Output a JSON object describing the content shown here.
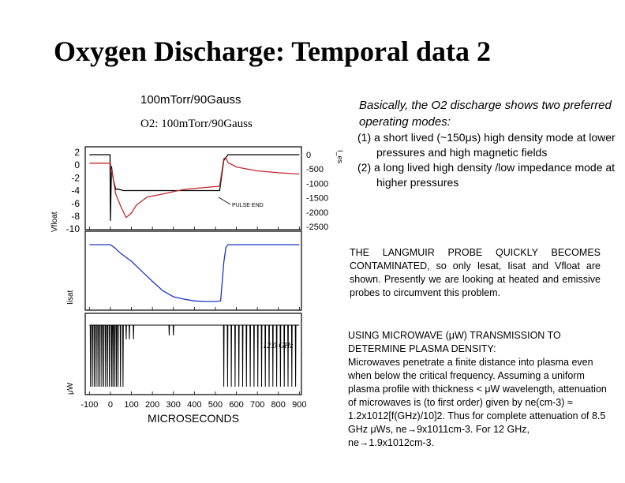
{
  "slide": {
    "title": "Oxygen Discharge: Temporal data 2",
    "subtitle": "100mTorr/90Gauss",
    "summary": "Basically, the O2 discharge shows two preferred operating modes:",
    "modes": [
      "(1) a short lived (~150μs) high density mode at lower pressures and high magnetic fields",
      "(2) a long lived high density /low impedance mode at higher pressures"
    ],
    "probe_note": "THE LANGMUIR PROBE QUICKLY BECOMES CONTAMINATED, so only Iesat, Iisat and Vfloat are shown. Presently we are looking at heated and emissive probes to circumvent this problem.",
    "uw_heading": "USING MICROWAVE (μW) TRANSMISSION TO DETERMINE PLASMA DENSITY:",
    "uw_body": "Microwaves penetrate a finite distance into plasma even when below the critical frequency. Assuming a uniform plasma profile with thickness < μW wavelength, attenuation of microwaves is (to first order) given by ne(cm-3) ≈ 1.2x1012[f(GHz)/10]2. Thus for complete attenuation of 8.5 GHz μWs, ne→9x1011cm-3. For 12 GHz, ne→1.9x1012cm-3."
  },
  "chart_data": {
    "type": "line",
    "title": "O2: 100mTorr/90Gauss",
    "xlabel": "MICROSECONDS",
    "x_ticks": [
      "-100",
      "0",
      "100",
      "200",
      "300",
      "400",
      "500",
      "600",
      "700",
      "800",
      "900"
    ],
    "xlim": [
      -120,
      910
    ],
    "annotations": [
      "PULSE END",
      "12.0 GHz"
    ],
    "panels": [
      {
        "ylabel": "Vfloat",
        "left_ticks": [
          "2",
          "0",
          "-2",
          "-4",
          "-6",
          "-8",
          "-10"
        ],
        "right_ticks": [
          "0",
          "-500",
          "-1000",
          "-1500",
          "-2000",
          "-2500"
        ],
        "series": [
          {
            "color": "#000000",
            "x": [
              -100,
              -2,
              0,
              5,
              8,
              15,
              25,
              40,
              60,
              90,
              130,
              200,
              300,
              400,
              500,
              520,
              540,
              560,
              600,
              700,
              800,
              900
            ],
            "y": [
              0,
              0,
              -2300,
              -400,
              -600,
              -900,
              -1200,
              -1200,
              -1250,
              -1250,
              -1250,
              -1250,
              -1250,
              -1250,
              -1250,
              -1250,
              -200,
              0,
              0,
              0,
              0,
              0
            ]
          },
          {
            "color": "#c0272d",
            "x": [
              -100,
              0,
              2,
              10,
              25,
              50,
              75,
              100,
              125,
              175,
              250,
              350,
              450,
              520,
              540,
              550,
              560,
              600,
              650,
              700,
              800,
              900
            ],
            "y": [
              0.3,
              0.3,
              -0.5,
              -1.5,
              -4.5,
              -6.5,
              -8.2,
              -7.5,
              -6.2,
              -5.0,
              -4.5,
              -3.8,
              -3.5,
              -3.3,
              1.0,
              1.2,
              0.4,
              -0.3,
              -0.6,
              -0.9,
              -1.2,
              -1.4
            ]
          }
        ]
      },
      {
        "ylabel": "Iisat",
        "series": [
          {
            "color": "#1d35c8",
            "x": [
              -100,
              0,
              20,
              50,
              100,
              150,
              200,
              250,
              300,
              350,
              400,
              450,
              500,
              525,
              540,
              550,
              560,
              600,
              700,
              800,
              900
            ],
            "y": [
              1.0,
              1.0,
              0.95,
              0.85,
              0.72,
              0.55,
              0.38,
              0.22,
              0.12,
              0.08,
              0.05,
              0.04,
              0.04,
              0.05,
              0.7,
              0.95,
              1.0,
              1.0,
              1.0,
              1.0,
              1.0
            ]
          }
        ]
      },
      {
        "ylabel": "μW",
        "series": [
          {
            "color": "#000000",
            "x": [
              -100,
              900
            ],
            "y": [
              1.0,
              1.0
            ]
          }
        ]
      }
    ]
  }
}
